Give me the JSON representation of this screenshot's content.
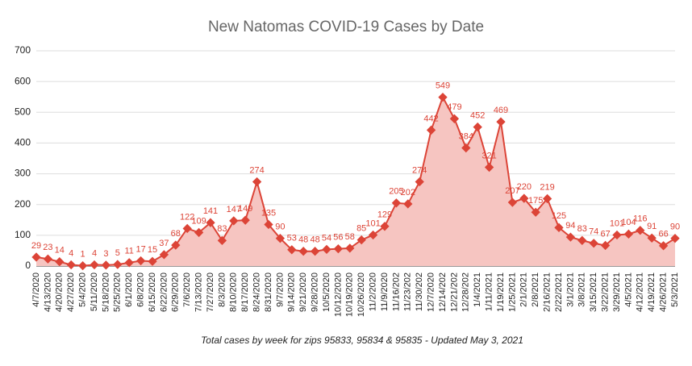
{
  "chart_data": {
    "type": "line",
    "title": "New Natomas COVID-19 Cases by Date",
    "subtitle": "Total cases by week for zips 95833, 95834 & 95835 - Updated May 3, 2021",
    "categories": [
      "4/7/2020",
      "4/13/2020",
      "4/20/2020",
      "4/27/2020",
      "5/4/2020",
      "5/11/2020",
      "5/18/2020",
      "5/25/2020",
      "6/1/2020",
      "6/8/2020",
      "6/15/2020",
      "6/22/2020",
      "6/29/2020",
      "7/6/2020",
      "7/13/2020",
      "7/27/2020",
      "8/3/2020",
      "8/10/2020",
      "8/17/2020",
      "8/24/2020",
      "8/31/2020",
      "9/7/2020",
      "9/14/2020",
      "9/21/2020",
      "9/28/2020",
      "10/5/2020",
      "10/12/2020",
      "10/19/2020",
      "10/26/2020",
      "11/2/2020",
      "11/9/2020",
      "11/16/202",
      "11/23/202",
      "11/30/202",
      "12/7/2020",
      "12/14/202",
      "12/21/202",
      "12/28/202",
      "1/4/2021",
      "1/11/2021",
      "1/19/2021",
      "1/25/2021",
      "2/1/2021",
      "2/8/2021",
      "2/16/2021",
      "2/22/2021",
      "3/1/2021",
      "3/8/2021",
      "3/15/2021",
      "3/22/2021",
      "3/29/2021",
      "4/5/2021",
      "4/12/2021",
      "4/19/2021",
      "4/26/2021",
      "5/3/2021"
    ],
    "series": [
      {
        "name": "Cases",
        "color": "#dc4437",
        "fill": "#f6c5c1",
        "values": [
          29,
          23,
          14,
          4,
          1,
          4,
          3,
          5,
          11,
          17,
          15,
          37,
          68,
          122,
          109,
          141,
          83,
          147,
          149,
          274,
          135,
          90,
          53,
          48,
          48,
          54,
          56,
          58,
          85,
          101,
          129,
          205,
          202,
          274,
          442,
          549,
          479,
          384,
          452,
          321,
          469,
          207,
          220,
          175,
          219,
          125,
          94,
          83,
          74,
          67,
          101,
          104,
          116,
          91,
          66,
          90
        ]
      }
    ],
    "ylim": [
      0,
      700
    ],
    "yticks": [
      0,
      100,
      200,
      300,
      400,
      500,
      600,
      700
    ],
    "grid": true
  }
}
